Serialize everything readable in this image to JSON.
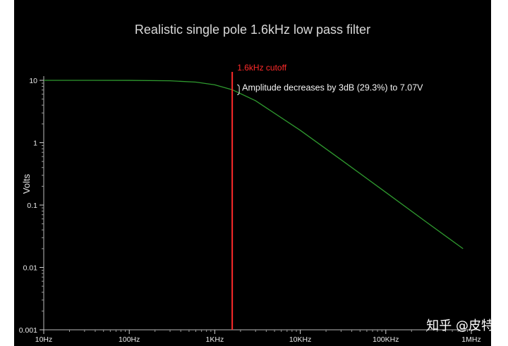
{
  "chart_data": {
    "type": "line",
    "title": "Realistic single pole 1.6kHz low pass filter",
    "xlabel": "",
    "ylabel": "Volts",
    "xscale": "log",
    "yscale": "log",
    "xlim": [
      10,
      1000000
    ],
    "ylim": [
      0.001,
      10
    ],
    "x_ticks": [
      {
        "value": 10,
        "label": "10Hz"
      },
      {
        "value": 100,
        "label": "100Hz"
      },
      {
        "value": 1000,
        "label": "1KHz"
      },
      {
        "value": 10000,
        "label": "10KHz"
      },
      {
        "value": 100000,
        "label": "100KHz"
      },
      {
        "value": 1000000,
        "label": "1MHz"
      }
    ],
    "y_ticks": [
      {
        "value": 10,
        "label": "10"
      },
      {
        "value": 1,
        "label": "1"
      },
      {
        "value": 0.1,
        "label": "0.1"
      },
      {
        "value": 0.01,
        "label": "0.01"
      },
      {
        "value": 0.001,
        "label": "0.001"
      }
    ],
    "grid": false,
    "series": [
      {
        "color": "#2f9a2f",
        "cutoff_hz": 1600,
        "x": [
          10,
          30,
          100,
          300,
          600,
          1000,
          1600,
          3000,
          10000,
          30000,
          100000,
          300000,
          800000
        ],
        "values": [
          10,
          9.999,
          9.988,
          9.829,
          9.364,
          8.479,
          7.071,
          4.706,
          1.58,
          0.533,
          0.16,
          0.053,
          0.02
        ]
      }
    ],
    "markers": [
      {
        "type": "vline",
        "x": 1600,
        "color": "#ff2a2a",
        "label": "1.6kHz cutoff"
      }
    ],
    "annotations": [
      {
        "text": "Amplitude decreases by 3dB (29.3%) to 7.07V",
        "x": 1600,
        "y": 7.07
      }
    ]
  },
  "watermark": "知乎 @皮特"
}
